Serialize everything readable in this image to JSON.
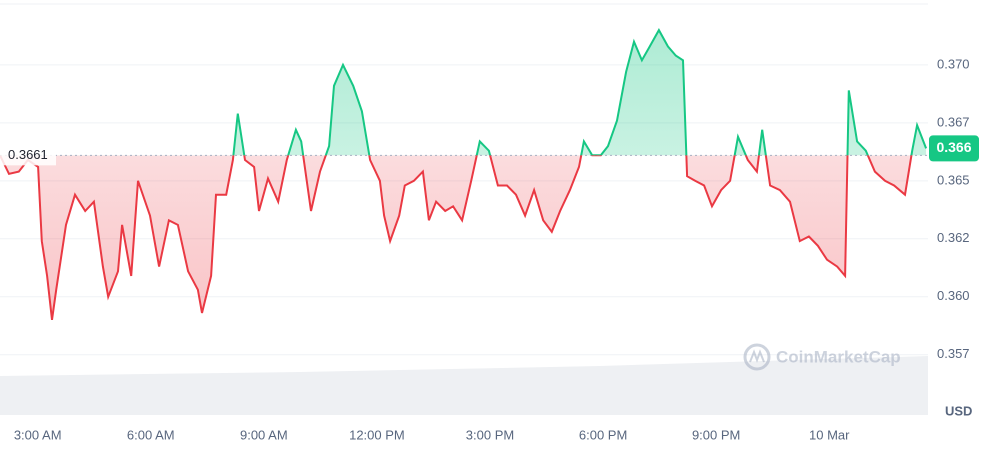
{
  "chart_data": {
    "type": "line",
    "baseline": 0.3661,
    "current": {
      "value": 0.3664,
      "label": "0.366"
    },
    "currency": "USD",
    "watermark": "CoinMarketCap",
    "up_color": "#16c784",
    "down_color": "#ea3943",
    "grid": true,
    "xlim": [
      2,
      26.62
    ],
    "ylim": [
      0.3549,
      0.3728
    ],
    "xticks": [
      {
        "value": 3,
        "label": "3:00 AM"
      },
      {
        "value": 6,
        "label": "6:00 AM"
      },
      {
        "value": 9,
        "label": "9:00 AM"
      },
      {
        "value": 12,
        "label": "12:00 PM"
      },
      {
        "value": 15,
        "label": "3:00 PM"
      },
      {
        "value": 18,
        "label": "6:00 PM"
      },
      {
        "value": 21,
        "label": "9:00 PM"
      },
      {
        "value": 24,
        "label": "10 Mar"
      }
    ],
    "yticks": [
      {
        "value": 0.3575,
        "label": "0.357"
      },
      {
        "value": 0.36,
        "label": "0.360"
      },
      {
        "value": 0.3625,
        "label": "0.362"
      },
      {
        "value": 0.365,
        "label": "0.365"
      },
      {
        "value": 0.3675,
        "label": "0.367"
      },
      {
        "value": 0.37,
        "label": "0.370"
      }
    ],
    "x": [
      2.0,
      2.24,
      2.5,
      2.74,
      3.01,
      3.11,
      3.25,
      3.38,
      3.49,
      3.75,
      3.99,
      4.26,
      4.49,
      4.73,
      4.87,
      5.13,
      5.24,
      5.48,
      5.66,
      5.98,
      6.22,
      6.48,
      6.72,
      6.99,
      7.25,
      7.36,
      7.6,
      7.73,
      8.0,
      8.18,
      8.31,
      8.5,
      8.74,
      8.87,
      9.11,
      9.38,
      9.61,
      9.85,
      9.99,
      10.25,
      10.49,
      10.73,
      10.86,
      11.1,
      11.37,
      11.6,
      11.82,
      12.08,
      12.19,
      12.35,
      12.59,
      12.74,
      12.98,
      13.22,
      13.38,
      13.57,
      13.81,
      14.02,
      14.26,
      14.5,
      14.73,
      14.97,
      15.21,
      15.45,
      15.69,
      15.93,
      16.17,
      16.41,
      16.64,
      16.86,
      17.12,
      17.36,
      17.49,
      17.71,
      17.94,
      18.13,
      18.37,
      18.61,
      18.82,
      19.03,
      19.24,
      19.48,
      19.72,
      19.93,
      20.12,
      20.23,
      20.44,
      20.68,
      20.89,
      21.13,
      21.37,
      21.58,
      21.84,
      22.08,
      22.22,
      22.43,
      22.69,
      22.96,
      23.22,
      23.46,
      23.7,
      23.94,
      24.21,
      24.42,
      24.52,
      24.74,
      24.97,
      25.21,
      25.48,
      25.72,
      26.01,
      26.2,
      26.33,
      26.57
    ],
    "values": [
      0.3661,
      0.3653,
      0.3654,
      0.3659,
      0.3656,
      0.3624,
      0.3609,
      0.359,
      0.3603,
      0.3631,
      0.3644,
      0.3637,
      0.3641,
      0.3613,
      0.36,
      0.3611,
      0.3631,
      0.3609,
      0.365,
      0.3635,
      0.3613,
      0.3633,
      0.3631,
      0.3611,
      0.3603,
      0.3593,
      0.3609,
      0.3644,
      0.3644,
      0.3659,
      0.3679,
      0.3659,
      0.3656,
      0.3637,
      0.3651,
      0.3641,
      0.3659,
      0.3672,
      0.3667,
      0.3637,
      0.3654,
      0.3665,
      0.3691,
      0.37,
      0.3691,
      0.368,
      0.3659,
      0.365,
      0.3635,
      0.3624,
      0.3635,
      0.3648,
      0.365,
      0.3654,
      0.3633,
      0.3641,
      0.3637,
      0.3639,
      0.3633,
      0.365,
      0.3667,
      0.3663,
      0.3648,
      0.3648,
      0.3644,
      0.3635,
      0.3646,
      0.3633,
      0.3628,
      0.3637,
      0.3646,
      0.3656,
      0.3667,
      0.3661,
      0.3661,
      0.3665,
      0.3676,
      0.3697,
      0.371,
      0.3702,
      0.3708,
      0.3715,
      0.3708,
      0.3704,
      0.3702,
      0.3652,
      0.365,
      0.3648,
      0.3639,
      0.3646,
      0.365,
      0.3669,
      0.3659,
      0.3654,
      0.3672,
      0.3648,
      0.3646,
      0.3641,
      0.3624,
      0.3626,
      0.3622,
      0.3616,
      0.3613,
      0.3609,
      0.3689,
      0.3667,
      0.3663,
      0.3654,
      0.365,
      0.3648,
      0.3644,
      0.3663,
      0.3674,
      0.3664
    ]
  }
}
